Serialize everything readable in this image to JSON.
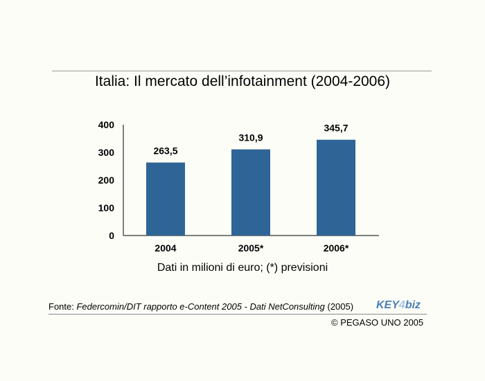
{
  "title": "Italia: Il mercato dell’infotainment (2004-2006)",
  "subtitle": "Dati in milioni di euro; (*) previsioni",
  "source": {
    "prefix": "Fonte: ",
    "italic": "Federcomin/DIT rapporto e-Content 2005 - Dati NetConsulting",
    "suffix": " (2005)"
  },
  "copyright": "© PEGASO UNO 2005",
  "logo": "KEY4biz",
  "chart_data": {
    "type": "bar",
    "title": "Italia: Il mercato dell’infotainment (2004-2006)",
    "categories": [
      "2004",
      "2005*",
      "2006*"
    ],
    "values": [
      263.5,
      310.9,
      345.7
    ],
    "value_labels": [
      "263,5",
      "310,9",
      "345,7"
    ],
    "ylim": [
      0,
      400
    ],
    "yticks": [
      0,
      100,
      200,
      300,
      400
    ],
    "xlabel": "Dati in milioni di euro; (*) previsioni",
    "ylabel": "",
    "bar_color": "#2f6496",
    "grid": false
  }
}
